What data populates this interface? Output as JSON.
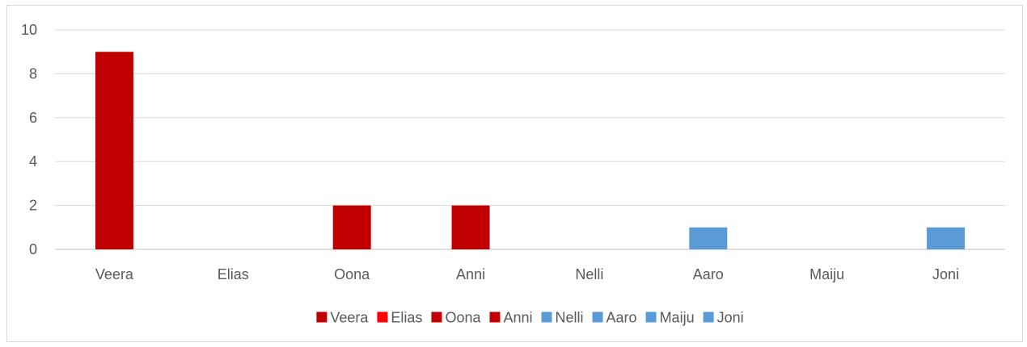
{
  "chart_data": {
    "type": "bar",
    "categories": [
      "Veera",
      "Elias",
      "Oona",
      "Anni",
      "Nelli",
      "Aaro",
      "Maiju",
      "Joni"
    ],
    "values": [
      9,
      0,
      2,
      2,
      0,
      1,
      0,
      1
    ],
    "colors": [
      "#c00000",
      "#ff0000",
      "#c00000",
      "#c00000",
      "#5b9bd5",
      "#5b9bd5",
      "#5b9bd5",
      "#5b9bd5"
    ],
    "title": "",
    "xlabel": "",
    "ylabel": "",
    "ylim": [
      0,
      10
    ],
    "yticks": [
      0,
      2,
      4,
      6,
      8,
      10
    ],
    "grid": true,
    "legend": {
      "position": "bottom",
      "entries": [
        {
          "label": "Veera",
          "color": "#c00000"
        },
        {
          "label": "Elias",
          "color": "#ff0000"
        },
        {
          "label": "Oona",
          "color": "#c00000"
        },
        {
          "label": "Anni",
          "color": "#c00000"
        },
        {
          "label": "Nelli",
          "color": "#5b9bd5"
        },
        {
          "label": "Aaro",
          "color": "#5b9bd5"
        },
        {
          "label": "Maiju",
          "color": "#5b9bd5"
        },
        {
          "label": "Joni",
          "color": "#5b9bd5"
        }
      ]
    }
  }
}
